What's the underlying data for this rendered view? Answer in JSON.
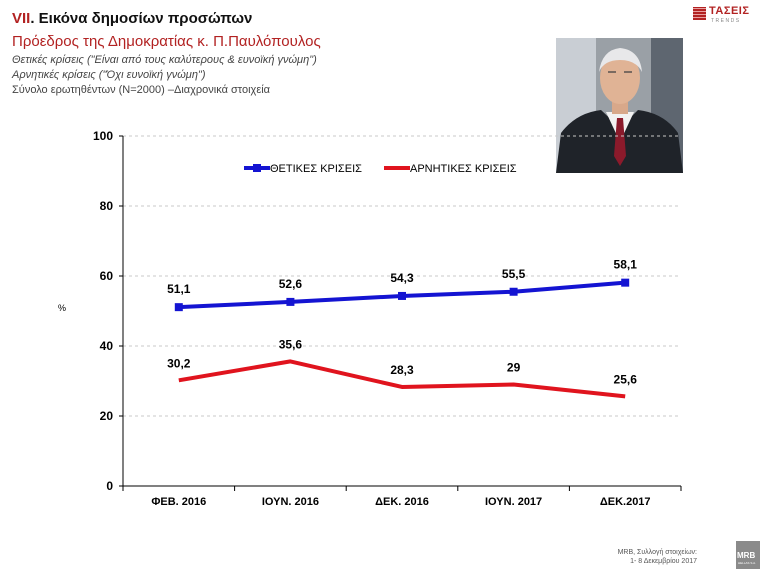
{
  "header": {
    "title_num": "VII",
    "title_rest": ". Εικόνα δημοσίων προσώπων",
    "subtitle": "Πρόεδρος της Δημοκρατίας κ. Π.Παυλόπουλος",
    "line1": "Θετικές κρίσεις (\"Είναι από τους καλύτερους & ευνοϊκή γνώμη\")",
    "line2": "Αρνητικές κρίσεις (\"Όχι ευνοϊκή γνώμη\")",
    "line3": "Σύνολο ερωτηθέντων (Ν=2000) –Διαχρονικά στοιχεία"
  },
  "logo": {
    "name": "ΤΑΣΕΙΣ",
    "tag": "TRENDS"
  },
  "mrb_logo": {
    "name": "MRB",
    "tag": "HELLAS S.A."
  },
  "footer": {
    "line1": "MRB, Συλλογή στοιχείων:",
    "line2": "1- 8 Δεκεμβρίου 2017"
  },
  "colors": {
    "positive": "#1414d2",
    "negative": "#e0141e",
    "accent": "#b22222"
  },
  "chart_data": {
    "type": "line",
    "categories": [
      "ΦΕΒ. 2016",
      "ΙΟΥΝ. 2016",
      "ΔΕΚ. 2016",
      "ΙΟΥΝ. 2017",
      "ΔΕΚ.2017"
    ],
    "series": [
      {
        "name": "ΘΕΤΙΚΕΣ ΚΡΙΣΕΙΣ",
        "values": [
          51.1,
          52.6,
          54.3,
          55.5,
          58.1
        ],
        "labels": [
          "51,1",
          "52,6",
          "54,3",
          "55,5",
          "58,1"
        ],
        "color": "#1414d2",
        "markers": true
      },
      {
        "name": "ΑΡΝΗΤΙΚΕΣ ΚΡΙΣΕΙΣ",
        "values": [
          30.2,
          35.6,
          28.3,
          29,
          25.6
        ],
        "labels": [
          "30,2",
          "35,6",
          "28,3",
          "29",
          "25,6"
        ],
        "color": "#e0141e",
        "markers": false
      }
    ],
    "ylabel": "%",
    "ylim": [
      0,
      100
    ],
    "yticks": [
      0,
      20,
      40,
      60,
      80,
      100
    ],
    "grid": true,
    "legend": "top"
  }
}
